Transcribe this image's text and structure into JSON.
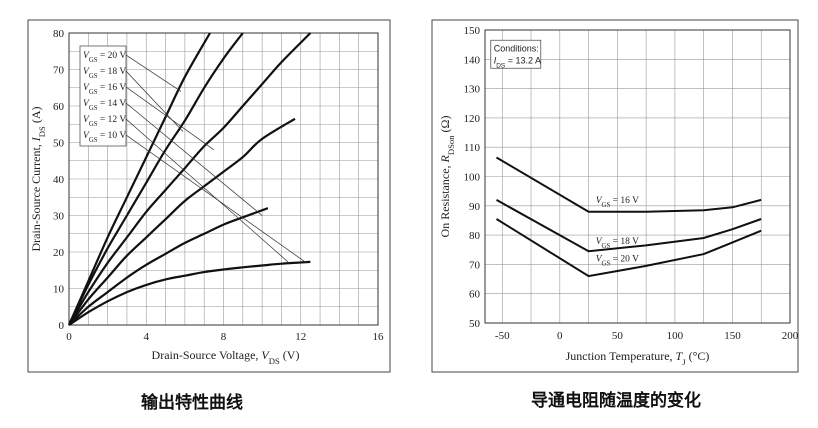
{
  "captions": {
    "left": "输出特性曲线",
    "right": "导通电阻随温度的变化"
  },
  "chart_data": [
    {
      "type": "line",
      "title": "",
      "xlabel": "Drain-Source Voltage, V_DS (V)",
      "ylabel": "Drain-Source Current, I_DS (A)",
      "xlim": [
        0,
        16
      ],
      "ylim": [
        0,
        80
      ],
      "xticks": [
        "0",
        "4",
        "8",
        "12",
        "16"
      ],
      "yticks": [
        "0",
        "10",
        "20",
        "30",
        "40",
        "50",
        "60",
        "70",
        "80"
      ],
      "grid": true,
      "legend_position": "top-left",
      "series": [
        {
          "name": "V_GS = 20 V",
          "x": [
            0,
            1,
            2,
            3,
            4,
            5,
            6,
            7.3
          ],
          "y": [
            0,
            12,
            24,
            35,
            46,
            57,
            68,
            80
          ]
        },
        {
          "name": "V_GS = 18 V",
          "x": [
            0,
            1,
            2,
            3,
            4,
            5,
            6,
            7,
            8,
            9
          ],
          "y": [
            0,
            11,
            21,
            30,
            39,
            48,
            56,
            65,
            73,
            80
          ]
        },
        {
          "name": "V_GS = 16 V",
          "x": [
            0,
            1,
            2,
            3,
            4,
            5,
            6,
            7,
            8,
            9,
            10,
            11,
            12.5
          ],
          "y": [
            0,
            9,
            17,
            24,
            31,
            37,
            43,
            49,
            54,
            60,
            66,
            72,
            80
          ]
        },
        {
          "name": "V_GS = 14 V",
          "x": [
            0,
            1,
            2,
            3,
            4,
            5,
            6,
            7,
            8,
            9,
            10,
            11.7
          ],
          "y": [
            0,
            7,
            13,
            19,
            24,
            29,
            34,
            38,
            42,
            46,
            51,
            56.5
          ]
        },
        {
          "name": "V_GS = 12 V",
          "x": [
            0,
            1,
            2,
            3,
            4,
            5,
            6,
            7,
            8,
            9,
            10.3
          ],
          "y": [
            0,
            5,
            9,
            13,
            16.5,
            19.5,
            22.5,
            25,
            27.5,
            29.5,
            32
          ]
        },
        {
          "name": "V_GS = 10 V",
          "x": [
            0,
            1,
            2,
            3,
            4,
            5,
            6,
            7,
            8,
            9,
            10,
            11,
            12.5
          ],
          "y": [
            0,
            3.5,
            6.5,
            9,
            11,
            12.5,
            13.5,
            14.5,
            15.2,
            15.8,
            16.3,
            16.8,
            17.3
          ]
        }
      ]
    },
    {
      "type": "line",
      "title": "",
      "xlabel": "Junction Temperature, T_J (°C)",
      "ylabel": "On Resistance, R_DSon (Ω)",
      "xlim": [
        -65,
        200
      ],
      "ylim": [
        50,
        150
      ],
      "xticks": [
        "-50",
        "0",
        "50",
        "100",
        "150",
        "200"
      ],
      "yticks": [
        "50",
        "60",
        "70",
        "80",
        "90",
        "100",
        "110",
        "120",
        "130",
        "140",
        "150"
      ],
      "grid": true,
      "annotation": {
        "line1": "Conditions:",
        "line2": "I_DS = 13.2 A"
      },
      "series": [
        {
          "name": "V_GS = 16 V",
          "x": [
            -55,
            25,
            75,
            125,
            150,
            175
          ],
          "y": [
            106.5,
            88,
            88,
            88.5,
            89.5,
            92
          ]
        },
        {
          "name": "V_GS = 18 V",
          "x": [
            -55,
            25,
            75,
            125,
            150,
            175
          ],
          "y": [
            92,
            74.5,
            76.5,
            79,
            82,
            85.5
          ]
        },
        {
          "name": "V_GS = 20 V",
          "x": [
            -55,
            25,
            75,
            125,
            150,
            175
          ],
          "y": [
            85.5,
            66,
            69.5,
            73.5,
            77.5,
            81.5
          ]
        }
      ]
    }
  ]
}
